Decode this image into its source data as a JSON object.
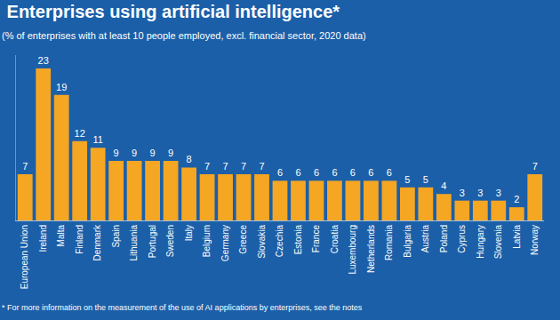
{
  "chart_data": {
    "type": "bar",
    "title": "Enterprises using artificial intelligence*",
    "subtitle": "(% of enterprises with at least 10 people employed, excl. financial sector, 2020 data)",
    "annotations": [
      "* For more information on the measurement of the use of AI applications by enterprises, see the notes"
    ],
    "categories": [
      "European Union",
      "Ireland",
      "Malta",
      "Finland",
      "Denmark",
      "Spain",
      "Lithuania",
      "Portugal",
      "Sweden",
      "Italy",
      "Belgium",
      "Germany",
      "Greece",
      "Slovakia",
      "Czechia",
      "Estonia",
      "France",
      "Croatia",
      "Luxembourg",
      "Netherlands",
      "Romania",
      "Bulgaria",
      "Austria",
      "Poland",
      "Cyprus",
      "Hungary",
      "Slovenia",
      "Latvia",
      "Norway"
    ],
    "values": [
      7,
      23,
      19,
      12,
      11,
      9,
      9,
      9,
      9,
      8,
      7,
      7,
      7,
      7,
      6,
      6,
      6,
      6,
      6,
      6,
      6,
      5,
      5,
      4,
      3,
      3,
      3,
      2,
      7
    ],
    "color": "#f5a623",
    "ylim": [
      0,
      25
    ],
    "grid": false,
    "data_labels": true,
    "tick_labels": "x"
  }
}
